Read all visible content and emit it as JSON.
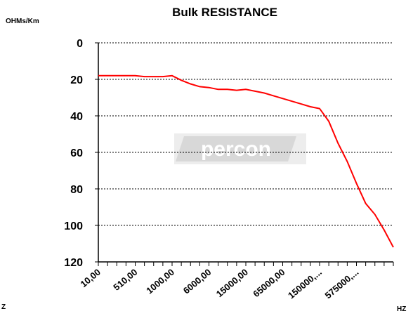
{
  "chart_data": {
    "type": "line",
    "title": "Bulk RESISTANCE",
    "y_label": "OHMs/Km",
    "x_label_left": "Z",
    "x_label_right": "HZ",
    "watermark": "percon",
    "categories": [
      "10,00",
      null,
      null,
      null,
      "510,00",
      null,
      null,
      null,
      "1000,00",
      null,
      null,
      null,
      "6000,00",
      null,
      null,
      null,
      "15000,00",
      null,
      null,
      null,
      "65000,00",
      null,
      null,
      null,
      "150000,...",
      null,
      null,
      null,
      "575000,...",
      null,
      null,
      null,
      null
    ],
    "series": [
      {
        "name": "Bulk RESISTANCE",
        "color": "#ff0000",
        "values": [
          18,
          18,
          18,
          18,
          18,
          18.5,
          18.5,
          18.5,
          18,
          20.5,
          22.5,
          24,
          24.5,
          25.5,
          25.5,
          26,
          25.5,
          26.5,
          27.5,
          29,
          30.5,
          32,
          33.5,
          35,
          36,
          43,
          55,
          65,
          77,
          88,
          94,
          102.5,
          112
        ]
      }
    ],
    "ylim": [
      0,
      120
    ],
    "y_inverted": true,
    "yticks": [
      0,
      20,
      40,
      60,
      80,
      100,
      120
    ],
    "grid": true
  }
}
